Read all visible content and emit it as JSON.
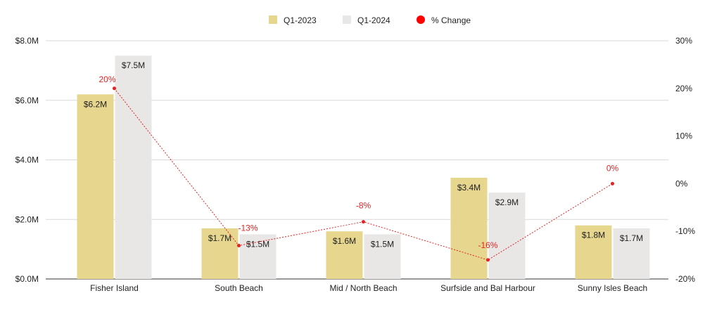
{
  "chart_data": {
    "type": "bar",
    "title": "",
    "categories": [
      "Fisher Island",
      "South Beach",
      "Mid / North Beach",
      "Surfside and Bal Harbour",
      "Sunny Isles Beach"
    ],
    "series": [
      {
        "name": "Q1-2023",
        "type": "bar",
        "axis": "left",
        "color": "#e6d68e",
        "values": [
          6.2,
          1.7,
          1.6,
          3.4,
          1.8
        ],
        "labels": [
          "$6.2M",
          "$1.7M",
          "$1.6M",
          "$3.4M",
          "$1.8M"
        ]
      },
      {
        "name": "Q1-2024",
        "type": "bar",
        "axis": "left",
        "color": "#e8e7e5",
        "values": [
          7.5,
          1.5,
          1.5,
          2.9,
          1.7
        ],
        "labels": [
          "$7.5M",
          "$1.5M",
          "$1.5M",
          "$2.9M",
          "$1.7M"
        ]
      },
      {
        "name": "% Change",
        "type": "line",
        "axis": "right",
        "color": "#e02424",
        "values": [
          20,
          -13,
          -8,
          -16,
          0
        ],
        "labels": [
          "20%",
          "-13%",
          "-8%",
          "-16%",
          "0%"
        ]
      }
    ],
    "left_axis": {
      "ylim": [
        0,
        8
      ],
      "ticks": [
        "$0.0M",
        "$2.0M",
        "$4.0M",
        "$6.0M",
        "$8.0M"
      ]
    },
    "right_axis": {
      "ylim": [
        -20,
        30
      ],
      "ticks": [
        "-20%",
        "-10%",
        "0%",
        "10%",
        "20%",
        "30%"
      ]
    },
    "grid": true,
    "legend": "top-center"
  }
}
